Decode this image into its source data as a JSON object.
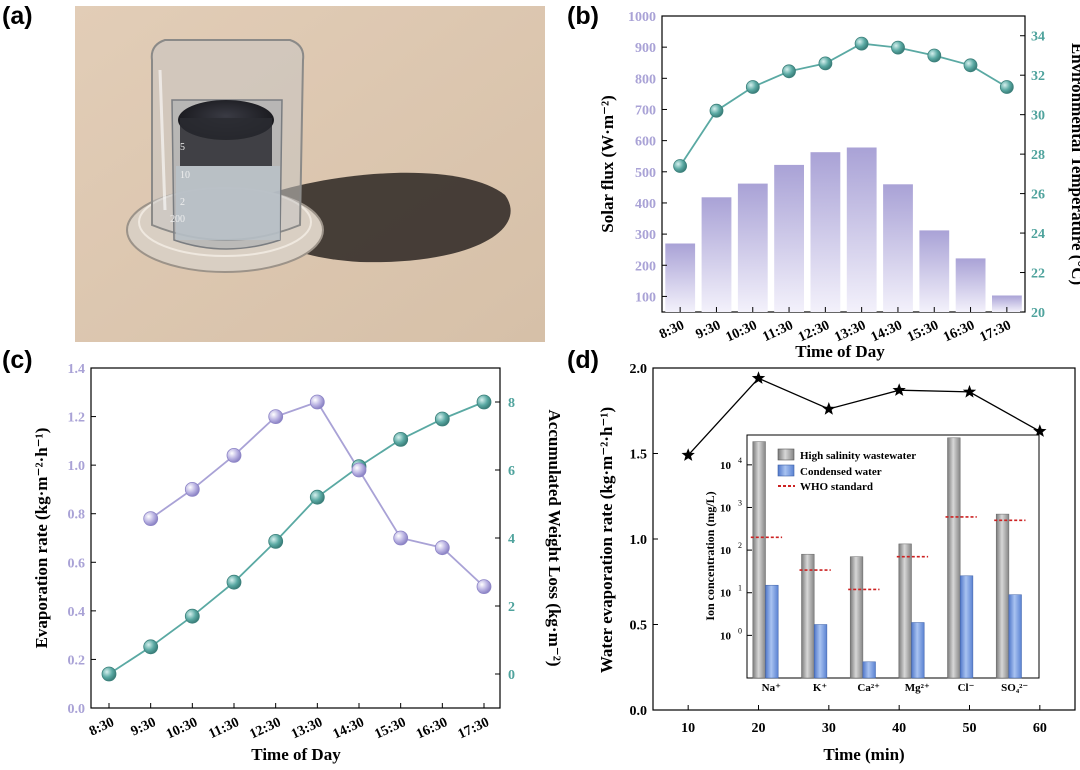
{
  "panels": {
    "a": {
      "label": "(a)"
    },
    "b": {
      "label": "(b)"
    },
    "c": {
      "label": "(c)"
    },
    "d": {
      "label": "(d)"
    }
  },
  "photo": {
    "description": "Glass beaker with dark photothermal absorber placed on a petri dish under sunlight, casting a shadow on sandy surface",
    "beaker_marks": [
      "5",
      "10",
      "2",
      "200"
    ]
  },
  "colors": {
    "purple": "#a9a2d6",
    "purple_light": "#ece9f8",
    "teal": "#5aa9a3",
    "teal_axis": "#4fa39d",
    "gray_bar": "#9a9a9a",
    "blue_bar": "#6f95dd",
    "red_dash": "#cc2222",
    "black": "#000000"
  },
  "chart_data": [
    {
      "panel": "b",
      "type": "bar+line",
      "categories": [
        "8:30",
        "9:30",
        "10:30",
        "11:30",
        "12:30",
        "13:30",
        "14:30",
        "15:30",
        "16:30",
        "17:30"
      ],
      "series": [
        {
          "name": "Solar flux",
          "axis": "left",
          "kind": "bar",
          "values": [
            270,
            418,
            462,
            522,
            563,
            578,
            460,
            312,
            222,
            103
          ]
        },
        {
          "name": "Environmental Temperature",
          "axis": "right",
          "kind": "line",
          "values": [
            27.4,
            30.2,
            31.4,
            32.2,
            32.6,
            33.6,
            33.4,
            33.0,
            32.5,
            31.4
          ]
        }
      ],
      "xlabel": "Time of Day",
      "ylabel_left": "Solar flux (W·m⁻²)",
      "ylabel_right": "Environmental Temperature (°C)",
      "ylim_left": [
        50,
        1000
      ],
      "yticks_left": [
        100,
        200,
        300,
        400,
        500,
        600,
        700,
        800,
        900,
        1000
      ],
      "ylim_right": [
        20,
        35
      ],
      "yticks_right": [
        20,
        22,
        24,
        26,
        28,
        30,
        32,
        34
      ]
    },
    {
      "panel": "c",
      "type": "line",
      "categories": [
        "8:30",
        "9:30",
        "10:30",
        "11:30",
        "12:30",
        "13:30",
        "14:30",
        "15:30",
        "16:30",
        "17:30"
      ],
      "series": [
        {
          "name": "Evaporation rate",
          "axis": "left",
          "color": "purple",
          "values": [
            null,
            0.78,
            0.9,
            1.04,
            1.2,
            1.26,
            0.98,
            0.7,
            0.66,
            0.5
          ]
        },
        {
          "name": "Accumulated Weight Loss",
          "axis": "right",
          "color": "teal",
          "values": [
            0.0,
            0.8,
            1.7,
            2.7,
            3.9,
            5.2,
            6.1,
            6.9,
            7.5,
            8.0
          ]
        }
      ],
      "xlabel": "Time of Day",
      "ylabel_left": "Evaporation rate (kg·m⁻²·h⁻¹)",
      "ylabel_right": "Accumulated Weight Loss (kg·m⁻²)",
      "ylim_left": [
        0,
        1.4
      ],
      "yticks_left": [
        "0.0",
        "0.2",
        "0.4",
        "0.6",
        "0.8",
        "1.0",
        "1.2",
        "1.4"
      ],
      "ylim_right": [
        -1,
        9
      ],
      "yticks_right": [
        "0",
        "2",
        "4",
        "6",
        "8"
      ]
    },
    {
      "panel": "d",
      "type": "line",
      "x": [
        10,
        20,
        30,
        40,
        50,
        60
      ],
      "xticks": [
        "10",
        "20",
        "30",
        "40",
        "50",
        "60"
      ],
      "xlim": [
        5,
        65
      ],
      "series": [
        {
          "name": "Water evaporation rate",
          "marker": "star",
          "values": [
            1.49,
            1.94,
            1.76,
            1.87,
            1.86,
            1.63
          ]
        }
      ],
      "xlabel": "Time (min)",
      "ylabel": "Water evaporation rate (kg·m⁻²·h⁻¹)",
      "ylim": [
        0,
        2.0
      ],
      "yticks": [
        "0.0",
        "0.5",
        "1.0",
        "1.5",
        "2.0"
      ],
      "inset": {
        "type": "bar",
        "yscale": "log",
        "ylim_exp": [
          -1,
          4.7
        ],
        "categories": [
          "Na⁺",
          "K⁺",
          "Ca²⁺",
          "Mg²⁺",
          "Cl⁻",
          "SO₄²⁻"
        ],
        "series": [
          {
            "name": "High salinity wastewater",
            "values": [
              35000,
              80,
              70,
              140,
              43000,
              700
            ]
          },
          {
            "name": "Condensed water",
            "values": [
              15,
              1.8,
              0.24,
              2.0,
              25,
              9
            ]
          }
        ],
        "who_standard": [
          200,
          34,
          12,
          70,
          600,
          500
        ],
        "legend": [
          "High salinity wastewater",
          "Condensed water",
          "WHO standard"
        ],
        "ylabel": "Ion concentration (mg/L)",
        "ytick_exponents": [
          0,
          1,
          2,
          3,
          4
        ]
      }
    }
  ]
}
